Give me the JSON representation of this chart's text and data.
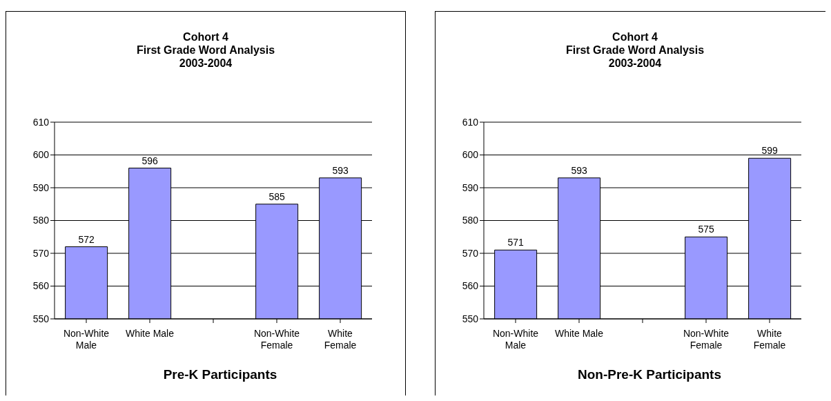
{
  "chart_data": [
    {
      "type": "bar",
      "title": "Cohort 4\nFirst Grade Word Analysis\n2003-2004",
      "xlabel": "Pre-K Participants",
      "categories": [
        "Non-White Male",
        "White Male",
        null,
        "Non-White Female",
        "White Female"
      ],
      "values": [
        572,
        596,
        null,
        585,
        593
      ],
      "color": "#9999ff",
      "ylim": [
        550,
        610
      ],
      "yticks": [
        550,
        560,
        570,
        580,
        590,
        600,
        610
      ],
      "grid": "y",
      "data_labels": true
    },
    {
      "type": "bar",
      "title": "Cohort 4\nFirst Grade Word Analysis\n2003-2004",
      "xlabel": "Non-Pre-K Participants",
      "categories": [
        "Non-White Male",
        "White Male",
        null,
        "Non-White Female",
        "White Female"
      ],
      "values": [
        571,
        593,
        null,
        575,
        599
      ],
      "color": "#9999ff",
      "ylim": [
        550,
        610
      ],
      "yticks": [
        550,
        560,
        570,
        580,
        590,
        600,
        610
      ],
      "grid": "y",
      "data_labels": true
    }
  ]
}
